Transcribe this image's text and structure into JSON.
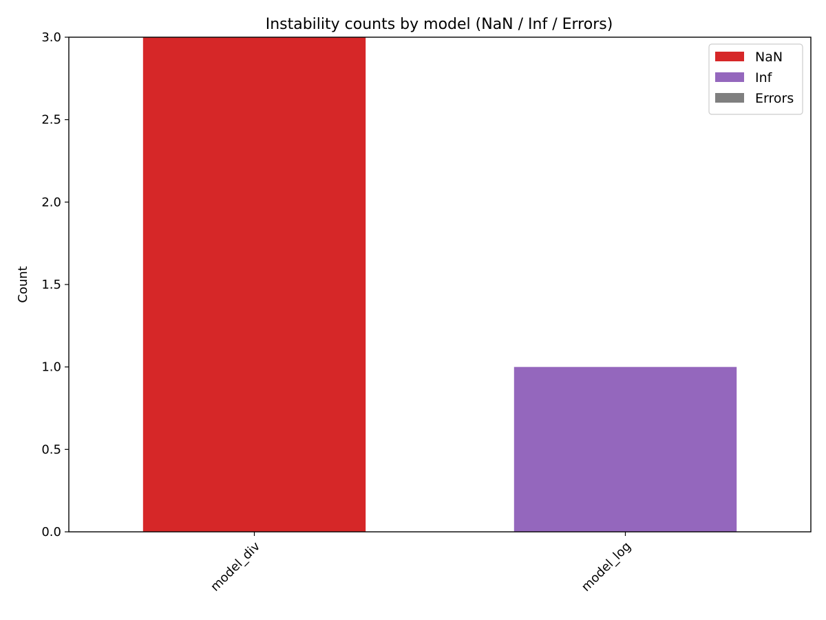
{
  "chart_data": {
    "type": "bar",
    "stacked": true,
    "title": "Instability counts by model (NaN / Inf / Errors)",
    "xlabel": "",
    "ylabel": "Count",
    "categories": [
      "model_div",
      "model_log"
    ],
    "series": [
      {
        "name": "NaN",
        "values": [
          3,
          0
        ],
        "color": "#d62728"
      },
      {
        "name": "Inf",
        "values": [
          0,
          1
        ],
        "color": "#9467bd"
      },
      {
        "name": "Errors",
        "values": [
          0,
          0
        ],
        "color": "#7f7f7f"
      }
    ],
    "ylim": [
      0,
      3
    ],
    "yticks": [
      0.0,
      0.5,
      1.0,
      1.5,
      2.0,
      2.5,
      3.0
    ],
    "ytick_labels": [
      "0.0",
      "0.5",
      "1.0",
      "1.5",
      "2.0",
      "2.5",
      "3.0"
    ],
    "legend_position": "top-right",
    "grid": false
  }
}
